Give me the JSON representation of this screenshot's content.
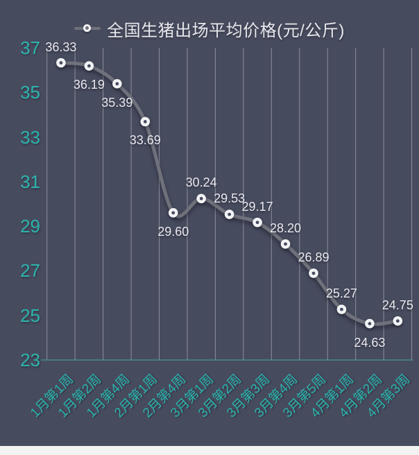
{
  "legend": {
    "label": "全国生猪出场平均价格(元/公斤)"
  },
  "chart_data": {
    "type": "line",
    "title": "全国生猪出场平均价格(元/公斤)",
    "categories": [
      "1月第1周",
      "1月第2周",
      "1月第4周",
      "2月第1周",
      "2月第4周",
      "3月第1周",
      "3月第2周",
      "3月第3周",
      "3月第4周",
      "3月第5周",
      "4月第1周",
      "4月第2周",
      "4月第3周"
    ],
    "values": [
      36.33,
      36.19,
      35.39,
      33.69,
      29.6,
      30.24,
      29.53,
      29.17,
      28.2,
      26.89,
      25.27,
      24.63,
      24.75
    ],
    "label_placement": [
      "above",
      "below",
      "below",
      "below",
      "below",
      "above",
      "above",
      "above",
      "above",
      "above",
      "above",
      "below",
      "above"
    ],
    "yticks": [
      37,
      35,
      33,
      31,
      29,
      27,
      25,
      23
    ],
    "ylim": [
      23,
      37
    ],
    "xlabel": "",
    "ylabel": "",
    "grid": "vertical-only",
    "legend_position": "top-center",
    "line_style": "smooth",
    "marker_style": "donut",
    "colors": {
      "background": "#474b5e",
      "gridline": "#9ea0ab",
      "axis_line": "#44a7a2",
      "axis_label": "#2cb4ac",
      "line": "#6f717b",
      "marker_fill": "#f2f3f5",
      "data_label": "#eaeaef",
      "legend_text": "#e8e8ec",
      "footer": "#f3f3f3"
    }
  }
}
